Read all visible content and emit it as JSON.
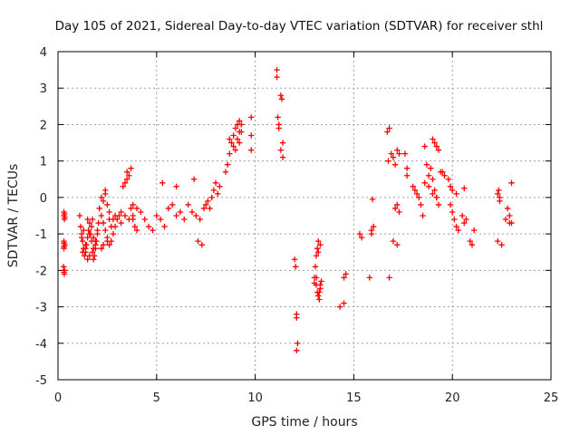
{
  "chart_data": {
    "type": "scatter",
    "title": "Day 105 of 2021, Sidereal Day-to-day VTEC variation (SDTVAR) for receiver sthl",
    "xlabel": "GPS time / hours",
    "ylabel": "SDTVAR / TECUs",
    "xlim": [
      0,
      25
    ],
    "ylim": [
      -5,
      4
    ],
    "xticks": [
      0,
      5,
      10,
      15,
      20,
      25
    ],
    "yticks": [
      -5,
      -4,
      -3,
      -2,
      -1,
      0,
      1,
      2,
      3,
      4
    ],
    "grid": true,
    "marker": "+",
    "series": [
      {
        "name": "sthl",
        "color": "#ff0000",
        "x": [
          0.3,
          0.3,
          0.32,
          0.3,
          0.35,
          0.3,
          0.28,
          0.33,
          0.32,
          0.3,
          0.35,
          0.3,
          0.3,
          0.33,
          1.1,
          1.15,
          1.2,
          1.25,
          1.3,
          1.35,
          1.4,
          1.45,
          1.5,
          1.55,
          1.6,
          1.65,
          1.7,
          1.75,
          1.8,
          1.85,
          1.9,
          1.95,
          2.0,
          2.05,
          1.2,
          1.3,
          1.4,
          1.5,
          1.6,
          1.7,
          1.8,
          1.9,
          2.0,
          1.25,
          1.5,
          1.75,
          1.9,
          1.4,
          1.6,
          1.8,
          2.1,
          2.2,
          2.3,
          2.4,
          2.5,
          2.6,
          2.7,
          2.8,
          2.9,
          3.0,
          2.2,
          2.4,
          2.6,
          2.8,
          2.2,
          2.3,
          2.5,
          2.7,
          2.9,
          2.3,
          2.4,
          2.5,
          2.6,
          3.1,
          3.2,
          3.3,
          3.4,
          3.5,
          3.6,
          3.7,
          3.8,
          3.9,
          4.0,
          3.2,
          3.4,
          3.6,
          3.8,
          4.0,
          4.2,
          4.4,
          4.6,
          4.8,
          3.5,
          3.7,
          3.8,
          5.0,
          5.2,
          5.4,
          5.6,
          5.8,
          6.0,
          6.2,
          6.4,
          6.6,
          6.8,
          7.0,
          7.2,
          7.4,
          7.5,
          7.6,
          7.7,
          7.8,
          7.9,
          8.0,
          8.1,
          8.2,
          5.3,
          6.0,
          6.9,
          7.1,
          7.3,
          8.5,
          8.6,
          8.7,
          8.8,
          8.9,
          9.0,
          9.1,
          9.2,
          9.3,
          8.7,
          8.9,
          9.1,
          9.2,
          9.3,
          9.0,
          9.2,
          9.8,
          9.8,
          9.8,
          11.1,
          11.1,
          11.15,
          11.2,
          11.3,
          11.35,
          11.4,
          11.4,
          11.2,
          11.3,
          12.0,
          12.05,
          12.1,
          12.1,
          12.15,
          12.1,
          13.0,
          13.05,
          13.1,
          13.15,
          13.2,
          13.25,
          13.3,
          13.35,
          13.2,
          13.3,
          13.1,
          13.25,
          13.0,
          13.15,
          13.3,
          13.2,
          13.1,
          14.3,
          14.5,
          14.5,
          14.6,
          15.3,
          15.4,
          15.8,
          15.9,
          15.9,
          15.95,
          16.0,
          16.7,
          16.8,
          16.75,
          16.9,
          17.0,
          17.1,
          17.2,
          17.3,
          17.1,
          17.2,
          17.3,
          17.0,
          17.2,
          16.8,
          17.6,
          17.7,
          17.7,
          18.0,
          18.1,
          18.2,
          18.3,
          18.4,
          18.5,
          18.6,
          18.7,
          18.8,
          18.9,
          19.0,
          19.1,
          19.2,
          19.3,
          18.6,
          18.8,
          19.0,
          19.2,
          19.4,
          19.6,
          19.8,
          19.9,
          19.0,
          19.1,
          19.2,
          19.3,
          19.5,
          19.9,
          20.0,
          20.1,
          20.2,
          20.3,
          20.0,
          20.2,
          20.5,
          20.6,
          20.7,
          20.9,
          21.0,
          21.1,
          20.6,
          22.3,
          22.4,
          22.3,
          22.5,
          22.7,
          22.9,
          23.0,
          22.9,
          23.0,
          22.8,
          22.35,
          22.4
        ],
        "y": [
          -0.4,
          -0.5,
          -0.6,
          -1.2,
          -1.3,
          -1.4,
          -1.9,
          -2.0,
          -2.1,
          -1.35,
          -0.55,
          -2.05,
          -1.25,
          -0.45,
          -0.5,
          -0.8,
          -1.0,
          -1.2,
          -1.4,
          -1.6,
          -1.5,
          -1.3,
          -1.1,
          -0.9,
          -0.7,
          -1.0,
          -1.2,
          -1.5,
          -1.7,
          -1.6,
          -1.4,
          -1.2,
          -0.9,
          -0.7,
          -1.1,
          -0.9,
          -1.3,
          -0.6,
          -1.0,
          -0.8,
          -1.1,
          -1.3,
          -1.0,
          -1.5,
          -1.7,
          -0.6,
          -1.2,
          -1.4,
          -1.6,
          -1.4,
          -0.3,
          -0.5,
          -0.7,
          -0.9,
          -1.1,
          -1.3,
          -1.2,
          -1.0,
          -0.8,
          -0.6,
          0.0,
          0.2,
          -0.4,
          -0.6,
          -1.4,
          -1.3,
          -1.2,
          -0.8,
          -0.5,
          -0.1,
          0.1,
          -0.2,
          -0.6,
          -0.5,
          -0.7,
          0.3,
          0.4,
          0.5,
          0.6,
          -0.3,
          -0.6,
          -0.8,
          -0.9,
          -0.4,
          -0.5,
          -0.6,
          -0.2,
          -0.3,
          -0.4,
          -0.6,
          -0.8,
          -0.9,
          0.7,
          0.8,
          -0.5,
          -0.5,
          -0.6,
          -0.8,
          -0.3,
          -0.2,
          -0.5,
          -0.4,
          -0.6,
          -0.2,
          -0.4,
          -0.5,
          -0.6,
          -0.3,
          -0.2,
          -0.1,
          -0.3,
          0.0,
          0.2,
          0.4,
          0.1,
          0.3,
          0.4,
          0.3,
          0.5,
          -1.2,
          -1.3,
          0.7,
          0.9,
          1.2,
          1.5,
          1.7,
          1.9,
          2.0,
          2.1,
          1.8,
          1.6,
          1.4,
          1.6,
          1.8,
          2.0,
          1.3,
          1.5,
          2.2,
          1.7,
          1.3,
          3.5,
          3.3,
          2.2,
          2.0,
          2.8,
          2.7,
          1.5,
          1.1,
          1.9,
          1.3,
          -1.7,
          -1.9,
          -3.2,
          -3.3,
          -4.0,
          -4.2,
          -2.2,
          -1.9,
          -1.6,
          -1.4,
          -1.2,
          -2.6,
          -2.4,
          -2.3,
          -2.7,
          -2.5,
          -2.4,
          -2.8,
          -2.35,
          -2.6,
          -1.3,
          -1.5,
          -2.2,
          -3.0,
          -2.9,
          -2.2,
          -2.1,
          -1.0,
          -1.1,
          -2.2,
          -1.0,
          -0.9,
          -0.05,
          -0.8,
          1.8,
          1.9,
          1.0,
          1.2,
          1.1,
          0.9,
          1.3,
          1.2,
          -0.3,
          -0.2,
          -0.4,
          -1.2,
          -1.3,
          -2.2,
          1.2,
          0.8,
          0.6,
          0.3,
          0.2,
          0.1,
          0.0,
          -0.2,
          -0.5,
          1.4,
          0.9,
          0.6,
          0.8,
          0.5,
          0.2,
          0.0,
          -0.2,
          0.4,
          0.3,
          0.1,
          0.0,
          0.7,
          0.6,
          0.5,
          0.3,
          1.6,
          1.5,
          1.4,
          1.3,
          0.7,
          -0.2,
          -0.4,
          -0.6,
          -0.8,
          -0.9,
          0.2,
          0.1,
          -0.5,
          -0.7,
          -0.6,
          -1.2,
          -1.3,
          -0.9,
          0.25,
          0.1,
          -0.1,
          -1.2,
          -1.3,
          -0.6,
          -0.7,
          0.4,
          -0.5,
          -0.7,
          -0.3,
          0.2,
          0.0
        ]
      }
    ]
  }
}
